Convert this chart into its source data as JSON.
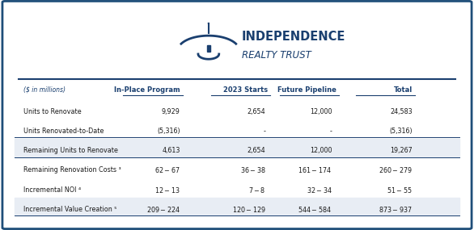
{
  "title_line1": "INDEPENDENCE",
  "title_line2": "REALTY TRUST",
  "subtitle": "($ in millions)",
  "border_color": "#1f4e79",
  "header_color": "#1a3f6f",
  "text_color": "#1a3f6f",
  "body_text_color": "#1a1a1a",
  "shaded_row_color": "#e8edf4",
  "columns": [
    "In-Place Program",
    "2023 Starts",
    "Future Pipeline",
    "Total"
  ],
  "rows": [
    {
      "label": "Units to Renovate",
      "values": [
        "9,929",
        "2,654",
        "12,000",
        "24,583"
      ],
      "bold": false,
      "shaded": false,
      "underline": false
    },
    {
      "label": "Units Renovated-to-Date",
      "values": [
        "(5,316)",
        "-",
        "-",
        "(5,316)"
      ],
      "bold": false,
      "shaded": false,
      "underline": true
    },
    {
      "label": "Remaining Units to Renovate",
      "values": [
        "4,613",
        "2,654",
        "12,000",
        "19,267"
      ],
      "bold": false,
      "shaded": true,
      "underline": true
    },
    {
      "label": "Remaining Renovation Costs ³",
      "values": [
        "$62 - $67",
        "$36 - $38",
        "$161 - $174",
        "$260 - $279"
      ],
      "bold": false,
      "shaded": false,
      "underline": false
    },
    {
      "label": "Incremental NOI ⁴",
      "values": [
        "$12 - $13",
        "$7 - $8",
        "$32 - $34",
        "$51 - $55"
      ],
      "bold": false,
      "shaded": false,
      "underline": false
    },
    {
      "label": "Incremental Value Creation ⁵",
      "values": [
        "$209 - $224",
        "$120 - $129",
        "$544 - $584",
        "$873 - $937"
      ],
      "bold": false,
      "shaded": true,
      "underline": true
    }
  ],
  "col_header_bold": true,
  "col_header_underline": true
}
